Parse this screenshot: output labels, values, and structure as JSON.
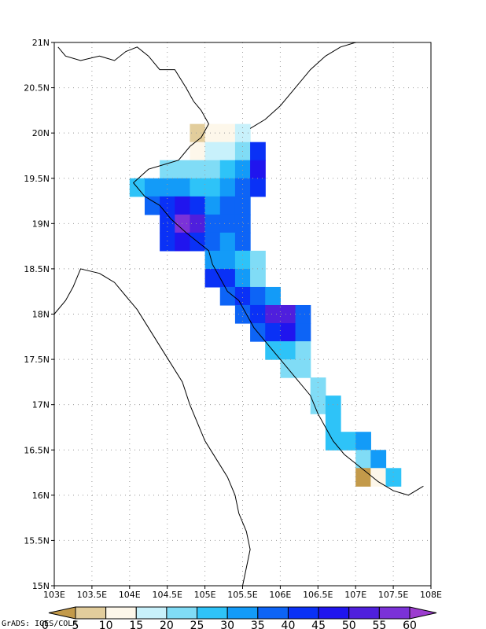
{
  "map": {
    "x_ticks": [
      "103E",
      "103.5E",
      "104E",
      "104.5E",
      "105E",
      "105.5E",
      "106E",
      "106.5E",
      "107E",
      "107.5E",
      "108E"
    ],
    "y_ticks": [
      "15N",
      "15.5N",
      "16N",
      "16.5N",
      "17N",
      "17.5N",
      "18N",
      "18.5N",
      "19N",
      "19.5N",
      "20N",
      "20.5N",
      "21N"
    ],
    "lon_range": [
      103,
      108
    ],
    "lat_range": [
      15,
      21
    ],
    "grid": "dotted",
    "credit": "GrADS: IGES/COLA"
  },
  "colorbar": {
    "labels": [
      "0",
      "5",
      "10",
      "15",
      "20",
      "25",
      "30",
      "35",
      "40",
      "45",
      "50",
      "55",
      "60"
    ],
    "colors": [
      "#c39a4a",
      "#e2cd9c",
      "#fdf7ea",
      "#c8f1fb",
      "#80dcf6",
      "#2ec3f8",
      "#139bf8",
      "#0d64f6",
      "#0a31f6",
      "#2015ee",
      "#4f1fdd",
      "#7b32d8",
      "#9c3ccf"
    ]
  },
  "cells": [
    {
      "lat": 20.0,
      "lon": 104.9,
      "v": 7
    },
    {
      "lat": 20.0,
      "lon": 105.1,
      "v": 12
    },
    {
      "lat": 20.0,
      "lon": 105.3,
      "v": 14
    },
    {
      "lat": 20.0,
      "lon": 105.5,
      "v": 16
    },
    {
      "lat": 19.8,
      "lon": 104.9,
      "v": 13
    },
    {
      "lat": 19.8,
      "lon": 105.1,
      "v": 15
    },
    {
      "lat": 19.8,
      "lon": 105.3,
      "v": 18
    },
    {
      "lat": 19.8,
      "lon": 105.5,
      "v": 22
    },
    {
      "lat": 19.8,
      "lon": 105.7,
      "v": 42
    },
    {
      "lat": 19.6,
      "lon": 104.5,
      "v": 22
    },
    {
      "lat": 19.6,
      "lon": 104.7,
      "v": 24
    },
    {
      "lat": 19.6,
      "lon": 104.9,
      "v": 20
    },
    {
      "lat": 19.6,
      "lon": 105.1,
      "v": 23
    },
    {
      "lat": 19.6,
      "lon": 105.3,
      "v": 26
    },
    {
      "lat": 19.6,
      "lon": 105.5,
      "v": 30
    },
    {
      "lat": 19.6,
      "lon": 105.7,
      "v": 45
    },
    {
      "lat": 19.4,
      "lon": 104.1,
      "v": 27
    },
    {
      "lat": 19.4,
      "lon": 104.3,
      "v": 30
    },
    {
      "lat": 19.4,
      "lon": 104.5,
      "v": 32
    },
    {
      "lat": 19.4,
      "lon": 104.7,
      "v": 30
    },
    {
      "lat": 19.4,
      "lon": 104.9,
      "v": 28
    },
    {
      "lat": 19.4,
      "lon": 105.1,
      "v": 26
    },
    {
      "lat": 19.4,
      "lon": 105.3,
      "v": 34
    },
    {
      "lat": 19.4,
      "lon": 105.5,
      "v": 37
    },
    {
      "lat": 19.4,
      "lon": 105.7,
      "v": 44
    },
    {
      "lat": 19.2,
      "lon": 104.3,
      "v": 36
    },
    {
      "lat": 19.2,
      "lon": 104.5,
      "v": 42
    },
    {
      "lat": 19.2,
      "lon": 104.7,
      "v": 48
    },
    {
      "lat": 19.2,
      "lon": 104.9,
      "v": 40
    },
    {
      "lat": 19.2,
      "lon": 105.1,
      "v": 33
    },
    {
      "lat": 19.2,
      "lon": 105.3,
      "v": 37
    },
    {
      "lat": 19.2,
      "lon": 105.5,
      "v": 38
    },
    {
      "lat": 19.0,
      "lon": 104.5,
      "v": 41
    },
    {
      "lat": 19.0,
      "lon": 104.7,
      "v": 55
    },
    {
      "lat": 19.0,
      "lon": 104.9,
      "v": 50
    },
    {
      "lat": 19.0,
      "lon": 105.1,
      "v": 38
    },
    {
      "lat": 19.0,
      "lon": 105.3,
      "v": 36
    },
    {
      "lat": 19.0,
      "lon": 105.5,
      "v": 35
    },
    {
      "lat": 18.8,
      "lon": 104.5,
      "v": 44
    },
    {
      "lat": 18.8,
      "lon": 104.7,
      "v": 46
    },
    {
      "lat": 18.8,
      "lon": 104.9,
      "v": 42
    },
    {
      "lat": 18.8,
      "lon": 105.1,
      "v": 36
    },
    {
      "lat": 18.8,
      "lon": 105.3,
      "v": 33
    },
    {
      "lat": 18.8,
      "lon": 105.5,
      "v": 36
    },
    {
      "lat": 18.6,
      "lon": 105.1,
      "v": 34
    },
    {
      "lat": 18.6,
      "lon": 105.3,
      "v": 30
    },
    {
      "lat": 18.6,
      "lon": 105.5,
      "v": 27
    },
    {
      "lat": 18.6,
      "lon": 105.7,
      "v": 22
    },
    {
      "lat": 18.4,
      "lon": 105.1,
      "v": 44
    },
    {
      "lat": 18.4,
      "lon": 105.3,
      "v": 40
    },
    {
      "lat": 18.4,
      "lon": 105.5,
      "v": 32
    },
    {
      "lat": 18.4,
      "lon": 105.7,
      "v": 24
    },
    {
      "lat": 18.2,
      "lon": 105.3,
      "v": 38
    },
    {
      "lat": 18.2,
      "lon": 105.5,
      "v": 40
    },
    {
      "lat": 18.2,
      "lon": 105.7,
      "v": 36
    },
    {
      "lat": 18.2,
      "lon": 105.9,
      "v": 30
    },
    {
      "lat": 18.0,
      "lon": 105.5,
      "v": 36
    },
    {
      "lat": 18.0,
      "lon": 105.7,
      "v": 42
    },
    {
      "lat": 18.0,
      "lon": 105.9,
      "v": 52
    },
    {
      "lat": 18.0,
      "lon": 106.1,
      "v": 50
    },
    {
      "lat": 18.0,
      "lon": 106.3,
      "v": 36
    },
    {
      "lat": 17.8,
      "lon": 105.7,
      "v": 37
    },
    {
      "lat": 17.8,
      "lon": 105.9,
      "v": 44
    },
    {
      "lat": 17.8,
      "lon": 106.1,
      "v": 47
    },
    {
      "lat": 17.8,
      "lon": 106.3,
      "v": 38
    },
    {
      "lat": 17.6,
      "lon": 105.9,
      "v": 28
    },
    {
      "lat": 17.6,
      "lon": 106.1,
      "v": 26
    },
    {
      "lat": 17.6,
      "lon": 106.3,
      "v": 20
    },
    {
      "lat": 17.4,
      "lon": 106.1,
      "v": 24
    },
    {
      "lat": 17.4,
      "lon": 106.3,
      "v": 22
    },
    {
      "lat": 17.2,
      "lon": 106.5,
      "v": 23
    },
    {
      "lat": 17.0,
      "lon": 106.5,
      "v": 22
    },
    {
      "lat": 17.0,
      "lon": 106.7,
      "v": 27
    },
    {
      "lat": 16.8,
      "lon": 106.7,
      "v": 29
    },
    {
      "lat": 16.6,
      "lon": 106.7,
      "v": 27
    },
    {
      "lat": 16.6,
      "lon": 106.9,
      "v": 29
    },
    {
      "lat": 16.6,
      "lon": 107.1,
      "v": 31
    },
    {
      "lat": 16.4,
      "lon": 107.1,
      "v": 22
    },
    {
      "lat": 16.4,
      "lon": 107.3,
      "v": 32
    },
    {
      "lat": 16.2,
      "lon": 107.1,
      "v": 3
    },
    {
      "lat": 16.2,
      "lon": 107.3,
      "v": 14
    },
    {
      "lat": 16.2,
      "lon": 107.5,
      "v": 27
    }
  ],
  "coast": [
    [
      103.05,
      20.95
    ],
    [
      103.15,
      20.85
    ],
    [
      103.35,
      20.8
    ],
    [
      103.6,
      20.85
    ],
    [
      103.8,
      20.8
    ],
    [
      103.95,
      20.9
    ],
    [
      104.1,
      20.95
    ],
    [
      104.25,
      20.85
    ],
    [
      104.4,
      20.7
    ],
    [
      104.6,
      20.7
    ],
    [
      104.75,
      20.5
    ],
    [
      104.85,
      20.35
    ],
    [
      104.95,
      20.25
    ],
    [
      105.05,
      20.1
    ],
    [
      104.95,
      19.95
    ],
    [
      104.8,
      19.85
    ],
    [
      104.65,
      19.7
    ],
    [
      104.45,
      19.65
    ],
    [
      104.25,
      19.6
    ],
    [
      104.05,
      19.45
    ],
    [
      104.2,
      19.3
    ],
    [
      104.4,
      19.2
    ],
    [
      104.55,
      19.05
    ],
    [
      104.75,
      18.9
    ],
    [
      104.9,
      18.8
    ],
    [
      105.05,
      18.7
    ],
    [
      105.1,
      18.55
    ],
    [
      105.2,
      18.4
    ],
    [
      105.3,
      18.25
    ],
    [
      105.45,
      18.15
    ],
    [
      105.55,
      18.0
    ],
    [
      105.65,
      17.85
    ],
    [
      105.8,
      17.7
    ],
    [
      105.95,
      17.55
    ],
    [
      106.1,
      17.4
    ],
    [
      106.25,
      17.25
    ],
    [
      106.4,
      17.1
    ],
    [
      106.5,
      16.9
    ],
    [
      106.6,
      16.75
    ],
    [
      106.7,
      16.6
    ],
    [
      106.85,
      16.45
    ],
    [
      107.0,
      16.35
    ],
    [
      107.15,
      16.25
    ],
    [
      107.3,
      16.15
    ],
    [
      107.5,
      16.05
    ],
    [
      107.7,
      16.0
    ],
    [
      107.9,
      16.1
    ]
  ],
  "coast2": [
    [
      105.6,
      20.05
    ],
    [
      105.8,
      20.15
    ],
    [
      106.0,
      20.3
    ],
    [
      106.2,
      20.5
    ],
    [
      106.4,
      20.7
    ],
    [
      106.6,
      20.85
    ],
    [
      106.8,
      20.95
    ],
    [
      107.0,
      21.0
    ]
  ],
  "border": [
    [
      103.0,
      18.0
    ],
    [
      103.15,
      18.15
    ],
    [
      103.25,
      18.3
    ],
    [
      103.35,
      18.5
    ],
    [
      103.6,
      18.45
    ],
    [
      103.8,
      18.35
    ],
    [
      103.95,
      18.2
    ],
    [
      104.1,
      18.05
    ],
    [
      104.25,
      17.85
    ],
    [
      104.4,
      17.65
    ],
    [
      104.55,
      17.45
    ],
    [
      104.7,
      17.25
    ],
    [
      104.8,
      17.0
    ],
    [
      104.9,
      16.8
    ],
    [
      105.0,
      16.6
    ],
    [
      105.15,
      16.4
    ],
    [
      105.3,
      16.2
    ],
    [
      105.4,
      16.0
    ],
    [
      105.45,
      15.8
    ],
    [
      105.55,
      15.6
    ],
    [
      105.6,
      15.4
    ],
    [
      105.55,
      15.2
    ],
    [
      105.5,
      15.0
    ]
  ]
}
